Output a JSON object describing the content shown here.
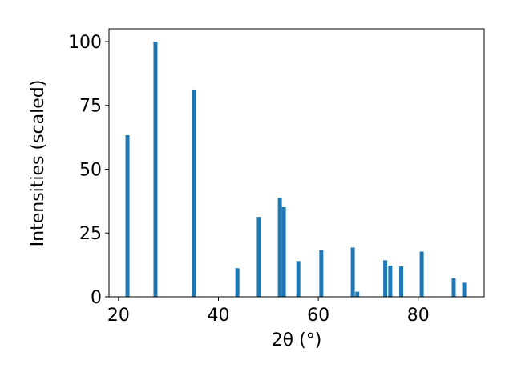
{
  "chart_data": {
    "type": "bar",
    "x": [
      21.8,
      27.4,
      35.1,
      43.8,
      48.1,
      52.3,
      53.1,
      56.0,
      60.6,
      66.9,
      67.8,
      73.4,
      74.4,
      76.6,
      80.7,
      87.1,
      89.2
    ],
    "values": [
      63.3,
      100,
      81.2,
      11.2,
      31.3,
      38.8,
      35.1,
      14,
      18.3,
      19.3,
      2,
      14.3,
      12.2,
      11.9,
      17.7,
      7.3,
      5.5
    ],
    "color": "#1f77b4",
    "xlabel": "2θ (°)",
    "ylabel": "Intensities (scaled)",
    "xlim": [
      18.1,
      93.2
    ],
    "ylim": [
      0,
      105
    ],
    "xticks": [
      20,
      40,
      60,
      80
    ],
    "yticks": [
      0,
      25,
      50,
      75,
      100
    ]
  }
}
